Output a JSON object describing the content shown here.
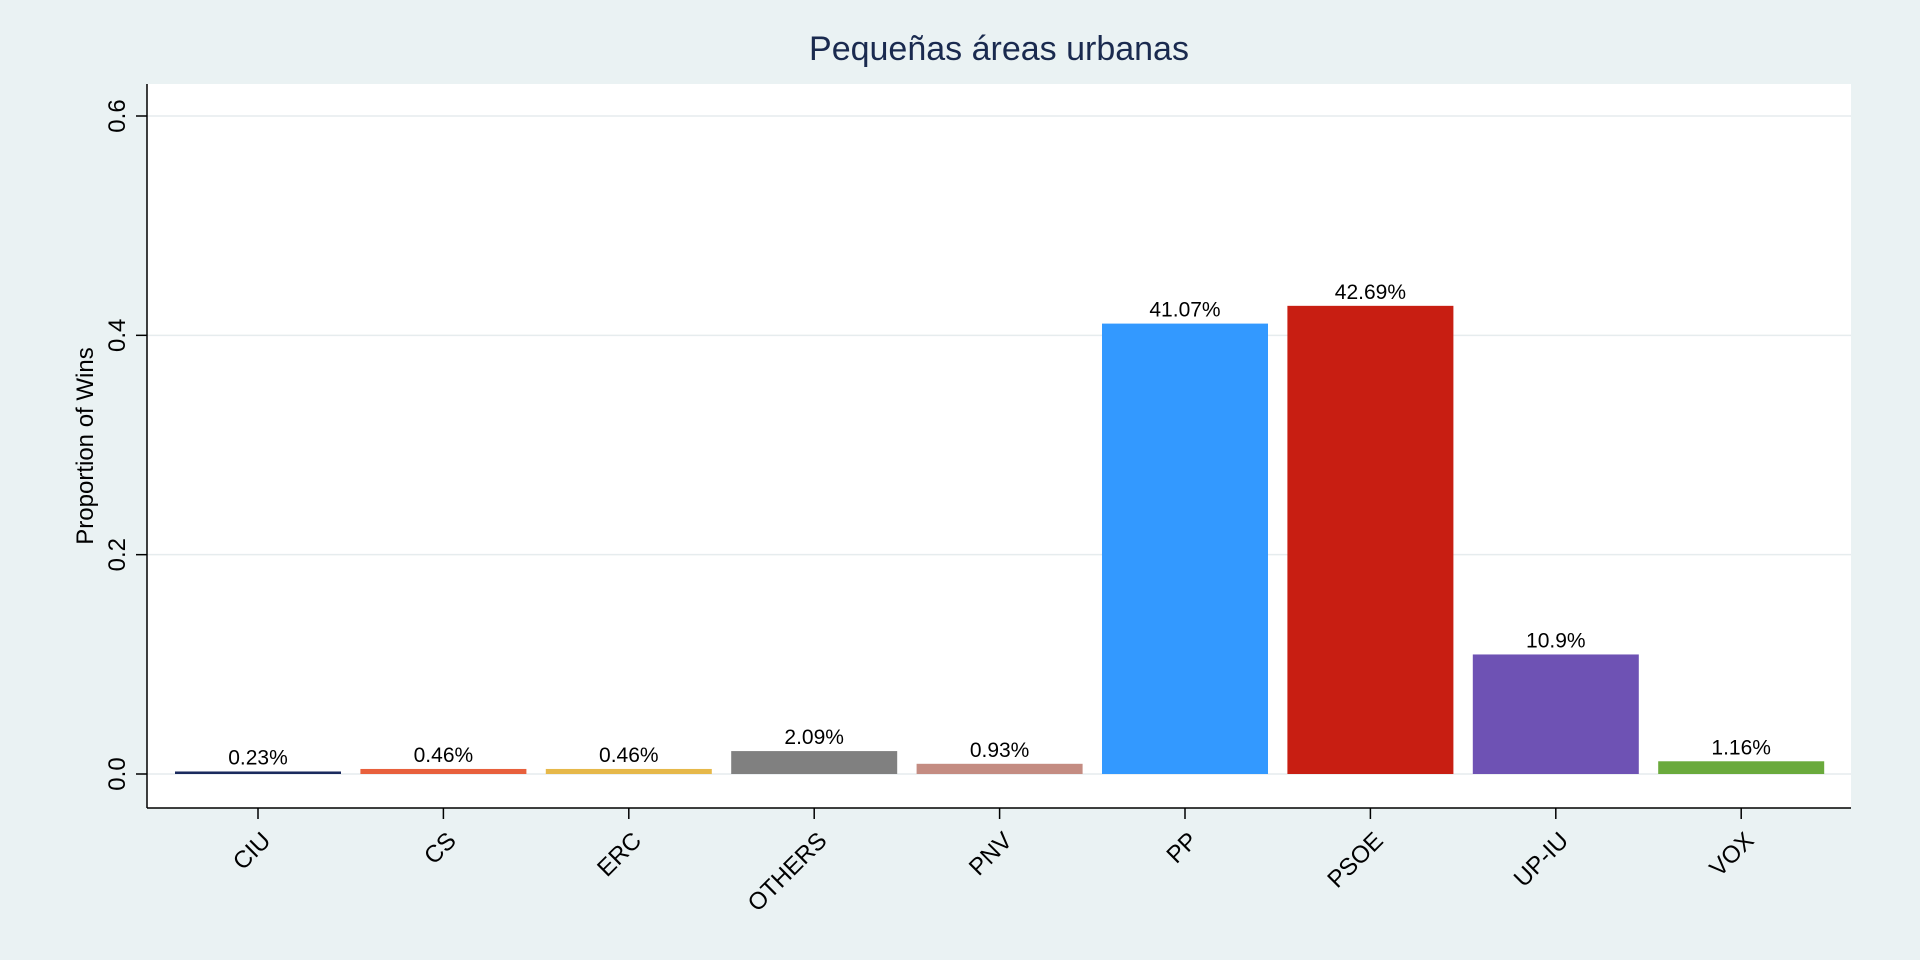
{
  "chart_data": {
    "type": "bar",
    "title": "Pequeñas áreas urbanas",
    "xlabel": "",
    "ylabel": "Proportion of Wins",
    "ylim": [
      0,
      0.63
    ],
    "yticks": [
      0.0,
      0.2,
      0.4,
      0.6
    ],
    "ytick_labels": [
      "0.0",
      "0.2",
      "0.4",
      "0.6"
    ],
    "grid": true,
    "legend": "none",
    "categories": [
      "CIU",
      "CS",
      "ERC",
      "OTHERS",
      "PNV",
      "PP",
      "PSOE",
      "UP-IU",
      "VOX"
    ],
    "values": [
      0.0023,
      0.0046,
      0.0046,
      0.0209,
      0.0093,
      0.4107,
      0.4269,
      0.109,
      0.0116
    ],
    "data_labels": [
      "0.23%",
      "0.46%",
      "0.46%",
      "2.09%",
      "0.93%",
      "41.07%",
      "42.69%",
      "10.9%",
      "1.16%"
    ],
    "colors": [
      "#1a2a5e",
      "#e8603c",
      "#e6b84a",
      "#808080",
      "#c48c82",
      "#3399ff",
      "#c81e12",
      "#6e52b4",
      "#6aaa3c"
    ],
    "background_color": "#eaf2f3",
    "plot_background_color": "#ffffff",
    "title_color": "#1a2a4f"
  }
}
